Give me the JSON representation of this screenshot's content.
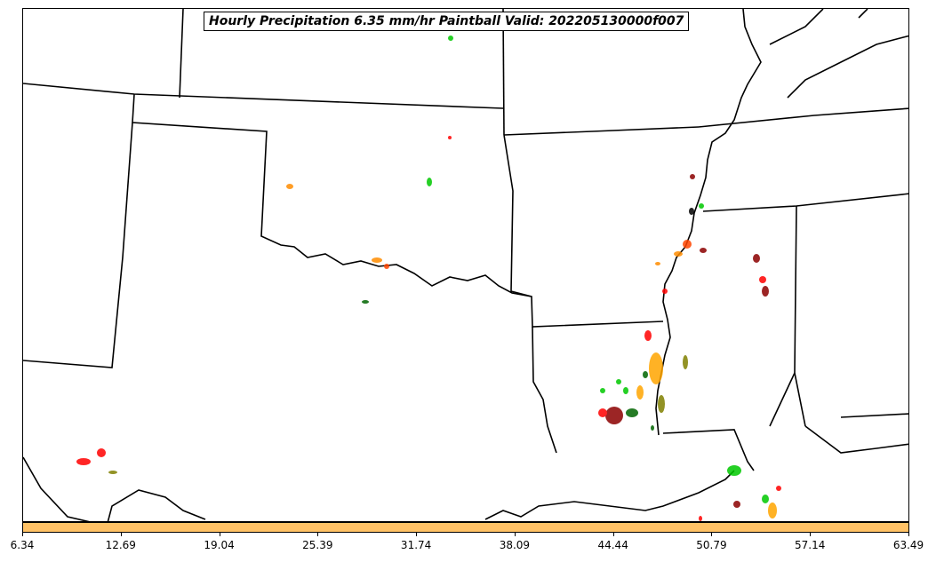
{
  "title": "Hourly Precipitation 6.35 mm/hr Paintball Valid: 202205130000f007",
  "colorbar": {
    "color": "#ffc266",
    "tick_labels": [
      "6.34",
      "12.69",
      "19.04",
      "25.39",
      "31.74",
      "38.09",
      "44.44",
      "50.79",
      "57.14",
      "63.49"
    ]
  },
  "paintball_colors": [
    "#ff0000",
    "#ff8c00",
    "#ffa500",
    "#00c800",
    "#006400",
    "#8b0000",
    "#808000",
    "#ff4500"
  ]
}
